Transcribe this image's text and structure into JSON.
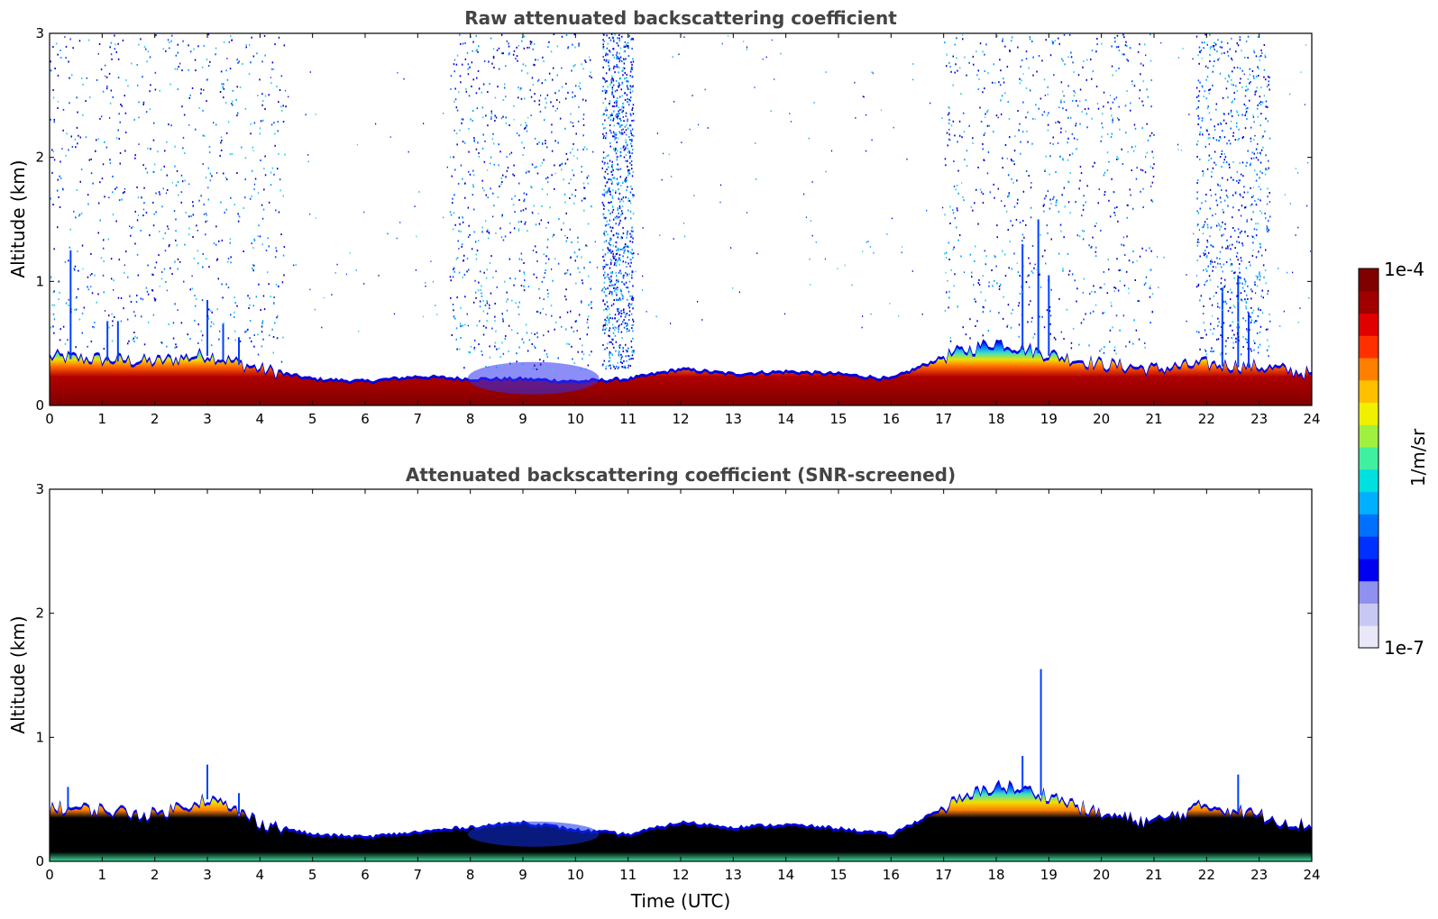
{
  "chart_data": [
    {
      "type": "heatmap",
      "title": "Raw attenuated backscattering coefficient",
      "xlabel": "",
      "ylabel": "Altitude (km)",
      "xlim": [
        0,
        24
      ],
      "ylim": [
        0,
        3
      ],
      "xticks": [
        0,
        1,
        2,
        3,
        4,
        5,
        6,
        7,
        8,
        9,
        10,
        11,
        12,
        13,
        14,
        15,
        16,
        17,
        18,
        19,
        20,
        21,
        22,
        23,
        24
      ],
      "yticks": [
        0,
        1,
        2,
        3
      ],
      "boundary_layer_top_km": {
        "time_utc": [
          0,
          1,
          2,
          3,
          4,
          5,
          6,
          7,
          8,
          9,
          10,
          11,
          12,
          13,
          14,
          15,
          16,
          17,
          18,
          19,
          20,
          21,
          22,
          23,
          24
        ],
        "height": [
          0.38,
          0.36,
          0.34,
          0.4,
          0.28,
          0.2,
          0.18,
          0.22,
          0.2,
          0.2,
          0.18,
          0.2,
          0.28,
          0.24,
          0.26,
          0.24,
          0.2,
          0.38,
          0.5,
          0.4,
          0.32,
          0.28,
          0.32,
          0.3,
          0.24
        ]
      },
      "noise_regions_utc": [
        [
          0,
          4.5
        ],
        [
          7.6,
          10.3
        ],
        [
          10.5,
          11.1
        ],
        [
          17,
          21
        ],
        [
          21.8,
          23.2
        ]
      ]
    },
    {
      "type": "heatmap",
      "title": "Attenuated backscattering coefficient (SNR-screened)",
      "xlabel": "Time (UTC)",
      "ylabel": "Altitude (km)",
      "xlim": [
        0,
        24
      ],
      "ylim": [
        0,
        3
      ],
      "xticks": [
        0,
        1,
        2,
        3,
        4,
        5,
        6,
        7,
        8,
        9,
        10,
        11,
        12,
        13,
        14,
        15,
        16,
        17,
        18,
        19,
        20,
        21,
        22,
        23,
        24
      ],
      "yticks": [
        0,
        1,
        2,
        3
      ],
      "boundary_layer_top_km": {
        "time_utc": [
          0,
          1,
          2,
          3,
          4,
          5,
          6,
          7,
          8,
          9,
          10,
          11,
          12,
          13,
          14,
          15,
          16,
          17,
          18,
          19,
          20,
          21,
          22,
          23,
          24
        ],
        "height": [
          0.42,
          0.4,
          0.36,
          0.5,
          0.3,
          0.2,
          0.18,
          0.22,
          0.26,
          0.3,
          0.24,
          0.2,
          0.3,
          0.26,
          0.28,
          0.25,
          0.2,
          0.42,
          0.6,
          0.52,
          0.36,
          0.3,
          0.44,
          0.36,
          0.26
        ]
      }
    }
  ],
  "colorbar": {
    "max_label": "1e-4",
    "min_label": "1e-7",
    "unit_label": "1/m/sr",
    "colors": [
      "#e8e8f8",
      "#c8c8f4",
      "#9090f0",
      "#0000f0",
      "#0030ff",
      "#0070ff",
      "#00b0ff",
      "#00e0e0",
      "#40f0a0",
      "#a0f040",
      "#f0f000",
      "#ffc000",
      "#ff8000",
      "#ff3000",
      "#e00000",
      "#a00000",
      "#800000"
    ]
  }
}
